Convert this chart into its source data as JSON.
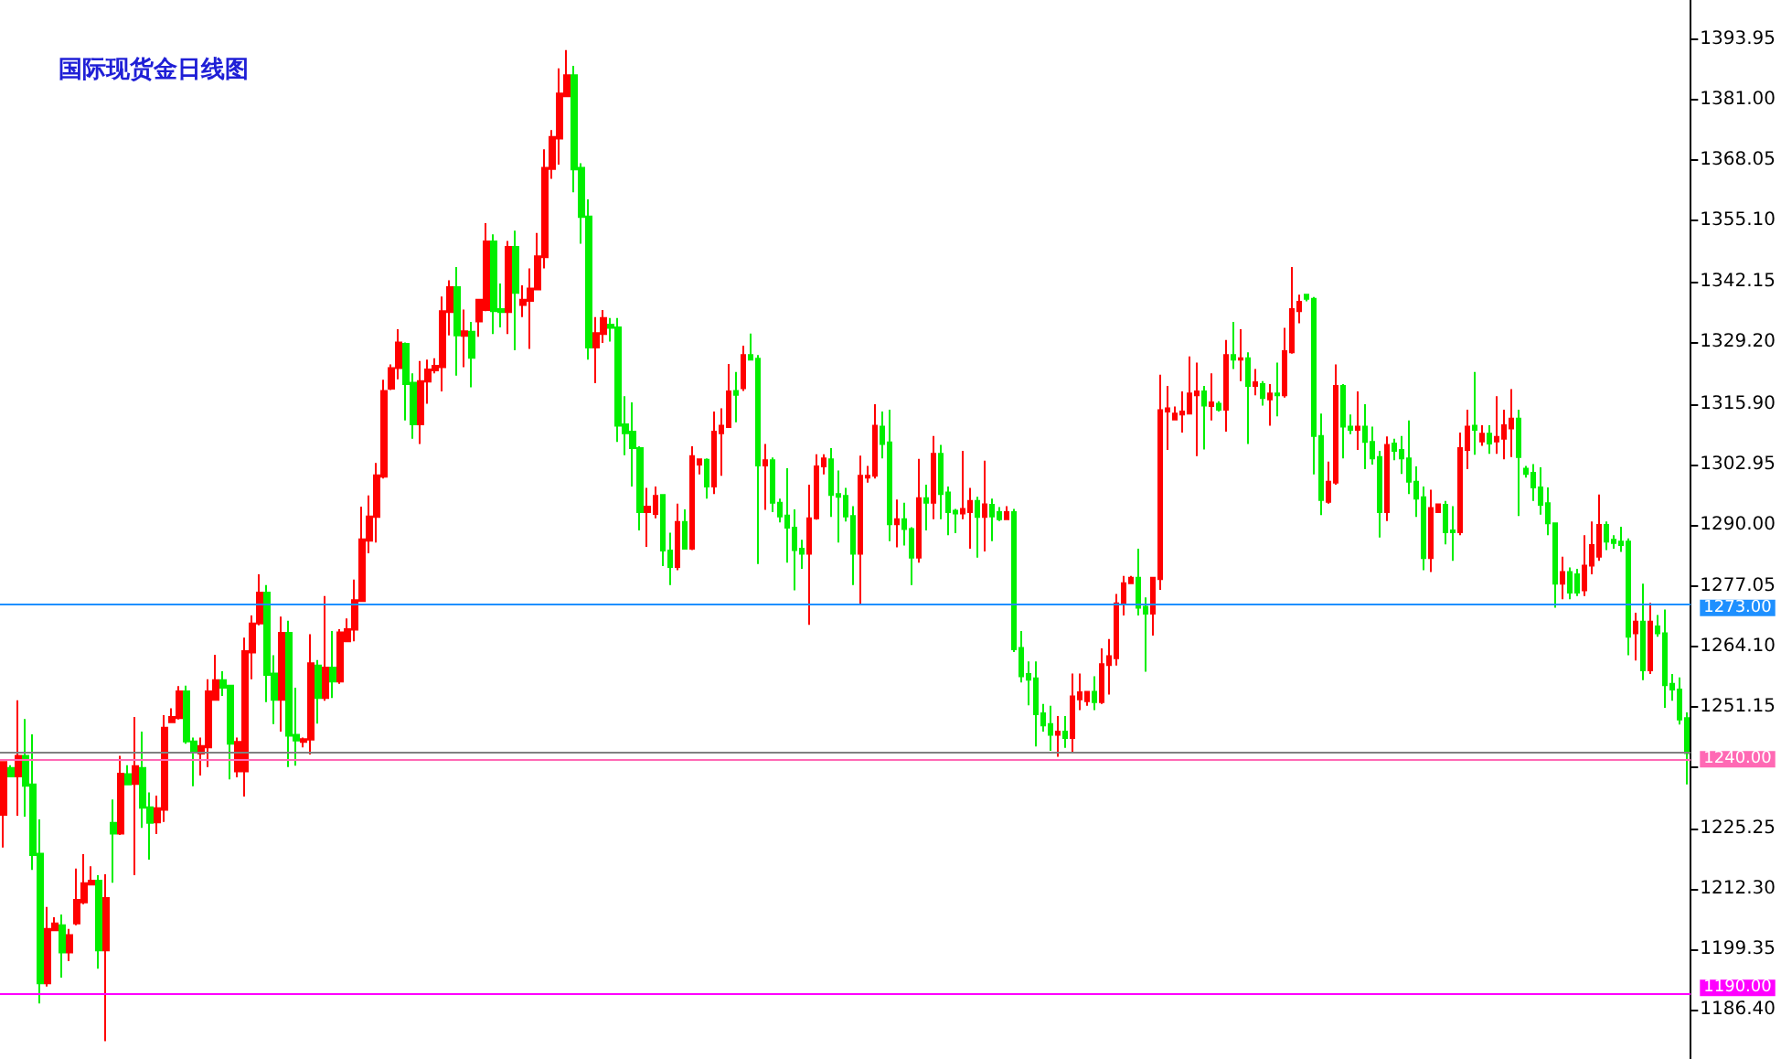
{
  "chart_data": {
    "type": "candlestick",
    "title": "国际现货金日线图",
    "categories": [
      null,
      null,
      null,
      null,
      null,
      null,
      null,
      null,
      null,
      null,
      null,
      null,
      null,
      null,
      null,
      null,
      null,
      null,
      null,
      null,
      null,
      null,
      null,
      null,
      null,
      null,
      null,
      null,
      null,
      null,
      null,
      null,
      null,
      null,
      null,
      null,
      null,
      null,
      null,
      null,
      null,
      null,
      null,
      null,
      null,
      null,
      null,
      null,
      null,
      null,
      null,
      null,
      null,
      null,
      null,
      null,
      null,
      null,
      null,
      null,
      null,
      null,
      null,
      null,
      null,
      null,
      null,
      null,
      null,
      null,
      null,
      null,
      null,
      null,
      null,
      null,
      null,
      null,
      null,
      null,
      null,
      null,
      null,
      null,
      null,
      null,
      null,
      null,
      null,
      null,
      null,
      null,
      null,
      null,
      null,
      null,
      null,
      null,
      null,
      null,
      null,
      null,
      null,
      null,
      null,
      null,
      null,
      null,
      null,
      null,
      null,
      null,
      null,
      null,
      null,
      null,
      null,
      null,
      null,
      null,
      null,
      null,
      null,
      null,
      null,
      null,
      null,
      null,
      null,
      null,
      null,
      null,
      null,
      null,
      null,
      null,
      null,
      null,
      null,
      null,
      null,
      null,
      null,
      null,
      null,
      null,
      null,
      null,
      null,
      null,
      null,
      null,
      null,
      null,
      null,
      null,
      null,
      null,
      null,
      null,
      null,
      null,
      null,
      null,
      null,
      null,
      null,
      null,
      null,
      null,
      null,
      null,
      null,
      null,
      null,
      null,
      null,
      null,
      null,
      null,
      null,
      null,
      null,
      null,
      null,
      null,
      null,
      null,
      null,
      null,
      null,
      null,
      null,
      null,
      null,
      null,
      null,
      null,
      null,
      null,
      null,
      null,
      null,
      null,
      null,
      null,
      null,
      null,
      null,
      null,
      null,
      null,
      null,
      null,
      null,
      null,
      null,
      null,
      null,
      null,
      null,
      null,
      null,
      null,
      null,
      null,
      null,
      null,
      null,
      null,
      null
    ],
    "ohlc": [
      [
        1228.1,
        1239.4,
        1221.1,
        1239.4
      ],
      [
        1238.1,
        1238.7,
        1236.3,
        1236.3
      ],
      [
        1236.3,
        1252.6,
        1227.9,
        1240.7
      ],
      [
        1240.7,
        1248.6,
        1227.7,
        1234.3
      ],
      [
        1234.6,
        1245.3,
        1216.3,
        1219.5
      ],
      [
        1219.8,
        1227.1,
        1187.8,
        1192.1
      ],
      [
        1192.1,
        1208.4,
        1191.4,
        1203.7
      ],
      [
        1203.4,
        1206.2,
        1203.4,
        1204.9
      ],
      [
        1204.5,
        1206.8,
        1193.3,
        1198.7
      ],
      [
        1198.7,
        1203.7,
        1196.8,
        1202.4
      ],
      [
        1204.9,
        1216.6,
        1204.5,
        1209.9
      ],
      [
        1209.4,
        1219.7,
        1209.0,
        1213.5
      ],
      [
        1213.2,
        1217.1,
        1213.2,
        1214.0
      ],
      [
        1214.0,
        1215.2,
        1195.2,
        1199.1
      ],
      [
        1199.1,
        1215.4,
        1179.7,
        1210.3
      ],
      [
        1226.4,
        1231.4,
        1213.6,
        1224.1
      ],
      [
        1224.1,
        1240.7,
        1223.8,
        1236.9
      ],
      [
        1236.8,
        1238.7,
        1234.6,
        1234.6
      ],
      [
        1234.7,
        1249.0,
        1215.2,
        1238.5
      ],
      [
        1238.1,
        1245.9,
        1225.3,
        1229.6
      ],
      [
        1229.7,
        1232.9,
        1218.5,
        1226.4
      ],
      [
        1226.5,
        1232.2,
        1224.0,
        1229.5
      ],
      [
        1229.2,
        1249.4,
        1226.6,
        1246.7
      ],
      [
        1247.9,
        1250.9,
        1247.9,
        1249.0
      ],
      [
        1248.8,
        1255.6,
        1248.5,
        1254.5
      ],
      [
        1254.5,
        1255.7,
        1243.3,
        1243.8
      ],
      [
        1243.8,
        1244.6,
        1234.2,
        1241.6
      ],
      [
        1241.2,
        1244.6,
        1236.5,
        1242.8
      ],
      [
        1242.5,
        1257.1,
        1238.3,
        1254.5
      ],
      [
        1252.7,
        1262.3,
        1252.7,
        1256.9
      ],
      [
        1256.9,
        1258.8,
        1253.5,
        1255.3
      ],
      [
        1255.7,
        1255.7,
        1235.7,
        1243.3
      ],
      [
        1237.4,
        1244.6,
        1236.1,
        1243.7
      ],
      [
        1237.4,
        1266.0,
        1232.0,
        1263.1
      ],
      [
        1262.8,
        1270.7,
        1257.1,
        1269.0
      ],
      [
        1269.0,
        1279.5,
        1268.6,
        1275.6
      ],
      [
        1275.6,
        1277.2,
        1252.2,
        1258.0
      ],
      [
        1258.3,
        1262.2,
        1247.5,
        1252.7
      ],
      [
        1252.7,
        1270.5,
        1245.9,
        1267.0
      ],
      [
        1267.0,
        1269.6,
        1238.3,
        1245.0
      ],
      [
        1245.2,
        1255.3,
        1238.6,
        1244.0
      ],
      [
        1243.7,
        1244.6,
        1242.5,
        1244.3
      ],
      [
        1244.2,
        1266.7,
        1241.0,
        1260.5
      ],
      [
        1260.0,
        1261.2,
        1247.6,
        1253.1
      ],
      [
        1253.1,
        1274.9,
        1252.5,
        1259.6
      ],
      [
        1259.6,
        1267.4,
        1253.1,
        1256.6
      ],
      [
        1256.6,
        1267.8,
        1256.1,
        1267.1
      ],
      [
        1265.2,
        1270.1,
        1265.2,
        1267.8
      ],
      [
        1267.7,
        1278.4,
        1265.2,
        1274.0
      ],
      [
        1273.8,
        1294.0,
        1273.8,
        1287.0
      ],
      [
        1286.7,
        1296.4,
        1284.0,
        1291.9
      ],
      [
        1291.8,
        1303.3,
        1286.3,
        1300.7
      ],
      [
        1300.4,
        1321.1,
        1300.0,
        1318.7
      ],
      [
        1319.2,
        1324.4,
        1318.9,
        1323.6
      ],
      [
        1323.6,
        1331.9,
        1321.2,
        1329.1
      ],
      [
        1328.8,
        1329.1,
        1312.4,
        1320.2
      ],
      [
        1320.5,
        1322.5,
        1308.5,
        1311.6
      ],
      [
        1311.6,
        1325.1,
        1307.4,
        1320.8
      ],
      [
        1320.7,
        1325.4,
        1316.0,
        1323.3
      ],
      [
        1323.1,
        1325.7,
        1322.5,
        1324.1
      ],
      [
        1323.8,
        1338.9,
        1318.6,
        1335.8
      ],
      [
        1335.6,
        1342.4,
        1330.6,
        1340.9
      ],
      [
        1340.9,
        1345.2,
        1322.0,
        1330.6
      ],
      [
        1330.5,
        1336.1,
        1323.8,
        1331.5
      ],
      [
        1331.4,
        1333.5,
        1319.5,
        1325.8
      ],
      [
        1333.6,
        1338.2,
        1330.3,
        1338.2
      ],
      [
        1336.0,
        1354.6,
        1335.8,
        1350.7
      ],
      [
        1350.7,
        1352.2,
        1330.9,
        1335.8
      ],
      [
        1336.2,
        1341.7,
        1332.3,
        1335.6
      ],
      [
        1335.6,
        1350.8,
        1330.9,
        1349.5
      ],
      [
        1349.5,
        1353.0,
        1327.4,
        1339.7
      ],
      [
        1337.1,
        1341.3,
        1334.5,
        1338.2
      ],
      [
        1338.0,
        1344.9,
        1327.7,
        1340.6
      ],
      [
        1340.4,
        1352.5,
        1340.4,
        1347.5
      ],
      [
        1347.3,
        1370.4,
        1344.9,
        1366.4
      ],
      [
        1366.2,
        1374.5,
        1364.1,
        1373.0
      ],
      [
        1372.7,
        1387.7,
        1367.1,
        1382.3
      ],
      [
        1381.7,
        1391.6,
        1381.7,
        1386.2
      ],
      [
        1386.2,
        1388.2,
        1361.2,
        1366.1
      ],
      [
        1366.4,
        1367.4,
        1350.2,
        1355.9
      ],
      [
        1356.0,
        1359.7,
        1325.4,
        1328.0
      ],
      [
        1328.0,
        1334.5,
        1320.4,
        1331.1
      ],
      [
        1330.9,
        1336.0,
        1329.0,
        1334.3
      ],
      [
        1332.9,
        1334.3,
        1329.3,
        1332.2
      ],
      [
        1332.3,
        1334.3,
        1307.8,
        1311.3
      ],
      [
        1311.6,
        1317.6,
        1305.0,
        1309.7
      ],
      [
        1310.0,
        1316.3,
        1298.3,
        1306.5
      ],
      [
        1306.5,
        1306.9,
        1288.9,
        1292.8
      ],
      [
        1292.8,
        1298.0,
        1285.4,
        1294.0
      ],
      [
        1292.4,
        1298.3,
        1291.5,
        1296.3
      ],
      [
        1296.5,
        1296.5,
        1281.3,
        1284.6
      ],
      [
        1284.6,
        1288.4,
        1277.2,
        1281.1
      ],
      [
        1281.1,
        1294.6,
        1280.4,
        1290.7
      ],
      [
        1290.7,
        1293.4,
        1285.0,
        1285.0
      ],
      [
        1285.0,
        1306.9,
        1284.7,
        1304.8
      ],
      [
        1303.0,
        1304.1,
        1300.9,
        1304.1
      ],
      [
        1304.0,
        1304.3,
        1295.7,
        1298.3
      ],
      [
        1298.3,
        1314.3,
        1296.7,
        1310.0
      ],
      [
        1309.7,
        1315.0,
        1300.6,
        1311.3
      ],
      [
        1311.0,
        1324.5,
        1311.0,
        1318.6
      ],
      [
        1318.7,
        1322.8,
        1312.0,
        1317.9
      ],
      [
        1319.3,
        1328.4,
        1318.7,
        1326.4
      ],
      [
        1326.4,
        1331.0,
        1325.4,
        1325.4
      ],
      [
        1325.6,
        1326.4,
        1281.7,
        1302.8
      ],
      [
        1302.8,
        1307.4,
        1293.3,
        1303.9
      ],
      [
        1303.9,
        1304.5,
        1292.8,
        1294.8
      ],
      [
        1294.8,
        1295.7,
        1290.6,
        1291.9
      ],
      [
        1292.1,
        1302.2,
        1282.0,
        1289.5
      ],
      [
        1289.5,
        1293.4,
        1276.1,
        1284.7
      ],
      [
        1285.0,
        1286.9,
        1280.7,
        1283.9
      ],
      [
        1283.9,
        1298.7,
        1268.7,
        1291.5
      ],
      [
        1291.5,
        1305.2,
        1291.2,
        1302.6
      ],
      [
        1302.6,
        1305.2,
        1300.9,
        1304.3
      ],
      [
        1304.1,
        1306.5,
        1291.8,
        1296.5
      ],
      [
        1296.7,
        1301.7,
        1286.3,
        1296.1
      ],
      [
        1296.3,
        1298.0,
        1290.8,
        1291.9
      ],
      [
        1292.0,
        1294.1,
        1277.2,
        1283.9
      ],
      [
        1283.9,
        1304.9,
        1273.0,
        1300.6
      ],
      [
        1300.2,
        1302.7,
        1299.1,
        1300.6
      ],
      [
        1300.6,
        1315.9,
        1300.0,
        1311.3
      ],
      [
        1311.1,
        1314.3,
        1304.3,
        1307.4
      ],
      [
        1307.7,
        1314.7,
        1286.6,
        1290.2
      ],
      [
        1290.2,
        1295.5,
        1285.3,
        1291.3
      ],
      [
        1291.3,
        1294.8,
        1285.7,
        1289.2
      ],
      [
        1289.2,
        1289.6,
        1277.2,
        1283.1
      ],
      [
        1283.1,
        1304.2,
        1282.0,
        1295.8
      ],
      [
        1295.8,
        1298.7,
        1288.9,
        1294.8
      ],
      [
        1294.8,
        1309.1,
        1291.3,
        1305.3
      ],
      [
        1305.3,
        1307.2,
        1291.3,
        1296.7
      ],
      [
        1297.0,
        1298.3,
        1287.9,
        1292.8
      ],
      [
        1293.1,
        1293.5,
        1288.3,
        1292.5
      ],
      [
        1292.5,
        1305.9,
        1291.3,
        1293.5
      ],
      [
        1292.8,
        1298.0,
        1285.0,
        1295.2
      ],
      [
        1295.2,
        1296.1,
        1283.1,
        1291.8
      ],
      [
        1291.8,
        1303.8,
        1284.4,
        1294.5
      ],
      [
        1294.4,
        1295.7,
        1286.6,
        1291.9
      ],
      [
        1292.8,
        1293.9,
        1290.9,
        1291.3
      ],
      [
        1291.3,
        1294.1,
        1291.3,
        1292.8
      ],
      [
        1292.8,
        1293.5,
        1262.9,
        1263.5
      ],
      [
        1263.8,
        1267.4,
        1256.4,
        1257.7
      ],
      [
        1258.2,
        1260.9,
        1251.5,
        1257.0
      ],
      [
        1257.3,
        1260.9,
        1242.7,
        1249.6
      ],
      [
        1249.8,
        1251.8,
        1245.9,
        1247.2
      ],
      [
        1247.5,
        1251.4,
        1241.8,
        1245.2
      ],
      [
        1245.2,
        1249.2,
        1240.5,
        1245.9
      ],
      [
        1245.9,
        1249.2,
        1242.4,
        1244.5
      ],
      [
        1244.5,
        1258.3,
        1241.4,
        1253.4
      ],
      [
        1252.8,
        1258.3,
        1250.5,
        1254.3
      ],
      [
        1252.4,
        1254.4,
        1251.4,
        1254.4
      ],
      [
        1254.4,
        1257.7,
        1250.5,
        1252.2
      ],
      [
        1252.2,
        1263.7,
        1251.8,
        1260.3
      ],
      [
        1260.1,
        1265.7,
        1253.8,
        1262.0
      ],
      [
        1261.6,
        1275.3,
        1260.0,
        1273.3
      ],
      [
        1273.3,
        1279.2,
        1270.7,
        1277.6
      ],
      [
        1277.6,
        1279.2,
        1277.6,
        1278.8
      ],
      [
        1278.8,
        1285.0,
        1270.7,
        1272.4
      ],
      [
        1272.6,
        1274.6,
        1258.7,
        1271.1
      ],
      [
        1271.1,
        1278.8,
        1266.4,
        1278.8
      ],
      [
        1278.5,
        1322.2,
        1276.2,
        1314.6
      ],
      [
        1314.3,
        1319.8,
        1306.1,
        1315.0
      ],
      [
        1312.6,
        1315.4,
        1312.4,
        1313.9
      ],
      [
        1313.7,
        1318.6,
        1309.8,
        1314.3
      ],
      [
        1313.9,
        1326.1,
        1313.7,
        1318.2
      ],
      [
        1317.8,
        1324.8,
        1304.8,
        1318.6
      ],
      [
        1318.6,
        1319.8,
        1306.2,
        1315.6
      ],
      [
        1315.5,
        1322.5,
        1312.4,
        1316.3
      ],
      [
        1316.0,
        1316.5,
        1314.3,
        1314.7
      ],
      [
        1314.7,
        1329.6,
        1310.0,
        1326.4
      ],
      [
        1326.4,
        1333.5,
        1323.4,
        1325.4
      ],
      [
        1325.4,
        1331.9,
        1320.8,
        1325.7
      ],
      [
        1325.7,
        1327.0,
        1307.4,
        1319.8
      ],
      [
        1319.8,
        1323.4,
        1317.8,
        1320.6
      ],
      [
        1320.2,
        1320.8,
        1315.6,
        1317.2
      ],
      [
        1316.9,
        1320.2,
        1311.3,
        1318.2
      ],
      [
        1318.2,
        1324.8,
        1313.3,
        1317.8
      ],
      [
        1317.8,
        1332.2,
        1317.3,
        1327.2
      ],
      [
        1327.0,
        1345.2,
        1326.7,
        1336.2
      ],
      [
        1335.8,
        1339.3,
        1333.2,
        1337.8
      ],
      [
        1339.3,
        1339.3,
        1337.9,
        1338.4
      ],
      [
        1338.4,
        1338.8,
        1300.9,
        1309.1
      ],
      [
        1309.1,
        1313.9,
        1292.2,
        1295.4
      ],
      [
        1295.0,
        1303.6,
        1294.6,
        1299.3
      ],
      [
        1299.1,
        1324.4,
        1298.7,
        1319.8
      ],
      [
        1319.8,
        1320.2,
        1304.3,
        1311.1
      ],
      [
        1311.1,
        1313.7,
        1309.5,
        1310.4
      ],
      [
        1310.4,
        1318.6,
        1306.1,
        1311.1
      ],
      [
        1311.1,
        1315.9,
        1302.0,
        1307.8
      ],
      [
        1307.8,
        1311.1,
        1303.0,
        1304.3
      ],
      [
        1304.6,
        1305.9,
        1287.4,
        1292.8
      ],
      [
        1292.8,
        1309.0,
        1290.9,
        1307.2
      ],
      [
        1307.5,
        1308.5,
        1303.9,
        1305.9
      ],
      [
        1306.1,
        1309.1,
        1301.0,
        1304.3
      ],
      [
        1304.3,
        1312.4,
        1296.7,
        1299.3
      ],
      [
        1299.3,
        1302.6,
        1291.8,
        1295.7
      ],
      [
        1296.0,
        1298.3,
        1280.4,
        1283.0
      ],
      [
        1283.0,
        1297.6,
        1280.0,
        1293.7
      ],
      [
        1292.8,
        1294.5,
        1292.8,
        1294.5
      ],
      [
        1294.4,
        1295.2,
        1285.9,
        1288.5
      ],
      [
        1288.9,
        1294.1,
        1282.4,
        1288.5
      ],
      [
        1288.5,
        1309.8,
        1287.9,
        1306.5
      ],
      [
        1306.1,
        1314.7,
        1302.0,
        1311.1
      ],
      [
        1311.3,
        1322.8,
        1305.1,
        1310.4
      ],
      [
        1307.9,
        1311.4,
        1307.0,
        1309.6
      ],
      [
        1309.6,
        1311.4,
        1305.3,
        1307.5
      ],
      [
        1307.9,
        1317.6,
        1305.3,
        1308.9
      ],
      [
        1308.5,
        1314.7,
        1304.1,
        1311.4
      ],
      [
        1310.7,
        1319.1,
        1304.6,
        1312.8
      ],
      [
        1312.8,
        1314.7,
        1292.0,
        1304.6
      ],
      [
        1302.1,
        1302.7,
        1300.2,
        1301.0
      ],
      [
        1301.2,
        1303.1,
        1295.2,
        1298.1
      ],
      [
        1298.1,
        1302.4,
        1292.3,
        1294.4
      ],
      [
        1294.7,
        1298.1,
        1287.9,
        1290.4
      ],
      [
        1290.4,
        1290.4,
        1272.4,
        1277.5
      ],
      [
        1277.5,
        1283.3,
        1274.2,
        1280.0
      ],
      [
        1280.0,
        1281.0,
        1274.2,
        1275.6
      ],
      [
        1279.5,
        1280.7,
        1274.9,
        1275.6
      ],
      [
        1276.1,
        1287.9,
        1274.9,
        1281.4
      ],
      [
        1281.4,
        1290.8,
        1279.5,
        1285.8
      ],
      [
        1283.3,
        1296.6,
        1282.4,
        1290.1
      ],
      [
        1290.1,
        1290.8,
        1284.7,
        1286.5
      ],
      [
        1286.9,
        1287.9,
        1285.0,
        1286.2
      ],
      [
        1286.5,
        1289.7,
        1284.3,
        1285.8
      ],
      [
        1286.5,
        1287.2,
        1262.2,
        1266.2
      ],
      [
        1266.9,
        1271.3,
        1261.1,
        1269.4
      ],
      [
        1269.4,
        1277.5,
        1256.9,
        1259.0
      ],
      [
        1259.0,
        1273.4,
        1258.2,
        1269.4
      ],
      [
        1268.4,
        1270.8,
        1266.2,
        1266.9
      ],
      [
        1266.9,
        1272.0,
        1251.0,
        1255.8
      ],
      [
        1256.1,
        1258.2,
        1252.5,
        1254.9
      ],
      [
        1254.9,
        1257.5,
        1247.4,
        1248.5
      ],
      [
        1248.8,
        1250.0,
        1234.6,
        1241.3
      ]
    ],
    "colors": [
      "#ff0000",
      "#00ee00",
      "#ff0000",
      "#00ee00",
      "#00ee00",
      "#00ee00",
      "#ff0000",
      "#ff0000",
      "#00ee00",
      "#ff0000",
      "#ff0000",
      "#ff0000",
      "#ff0000",
      "#00ee00",
      "#ff0000",
      "#00ee00",
      "#ff0000",
      "#00ee00",
      "#ff0000",
      "#00ee00",
      "#00ee00",
      "#ff0000",
      "#ff0000",
      "#ff0000",
      "#ff0000",
      "#00ee00",
      "#00ee00",
      "#ff0000",
      "#ff0000",
      "#ff0000",
      "#00ee00",
      "#00ee00",
      "#ff0000",
      "#ff0000",
      "#ff0000",
      "#ff0000",
      "#00ee00",
      "#00ee00",
      "#ff0000",
      "#00ee00",
      "#00ee00",
      "#ff0000",
      "#ff0000",
      "#00ee00",
      "#ff0000",
      "#00ee00",
      "#ff0000",
      "#ff0000",
      "#ff0000",
      "#ff0000",
      "#ff0000",
      "#ff0000",
      "#ff0000",
      "#ff0000",
      "#ff0000",
      "#00ee00",
      "#00ee00",
      "#ff0000",
      "#ff0000",
      "#ff0000",
      "#ff0000",
      "#ff0000",
      "#00ee00",
      "#ff0000",
      "#00ee00",
      "#ff0000",
      "#ff0000",
      "#00ee00",
      "#00ee00",
      "#ff0000",
      "#00ee00",
      "#ff0000",
      "#ff0000",
      "#ff0000",
      "#ff0000",
      "#ff0000",
      "#ff0000",
      "#ff0000",
      "#00ee00",
      "#00ee00",
      "#00ee00",
      "#ff0000",
      "#ff0000",
      "#00ee00",
      "#00ee00",
      "#00ee00",
      "#00ee00",
      "#00ee00",
      "#ff0000",
      "#ff0000",
      "#00ee00",
      "#00ee00",
      "#ff0000",
      "#00ee00",
      "#ff0000",
      "#ff0000",
      "#00ee00",
      "#ff0000",
      "#ff0000",
      "#ff0000",
      "#00ee00",
      "#ff0000",
      "#00ee00",
      "#00ee00",
      "#ff0000",
      "#00ee00",
      "#00ee00",
      "#00ee00",
      "#00ee00",
      "#00ee00",
      "#ff0000",
      "#ff0000",
      "#ff0000",
      "#00ee00",
      "#00ee00",
      "#00ee00",
      "#00ee00",
      "#ff0000",
      "#ff0000",
      "#ff0000",
      "#00ee00",
      "#00ee00",
      "#ff0000",
      "#00ee00",
      "#00ee00",
      "#ff0000",
      "#00ee00",
      "#ff0000",
      "#00ee00",
      "#00ee00",
      "#00ee00",
      "#ff0000",
      "#ff0000",
      "#00ee00",
      "#ff0000",
      "#00ee00",
      "#00ee00",
      "#ff0000",
      "#00ee00",
      "#00ee00",
      "#00ee00",
      "#00ee00",
      "#00ee00",
      "#00ee00",
      "#ff0000",
      "#00ee00",
      "#ff0000",
      "#ff0000",
      "#ff0000",
      "#00ee00",
      "#ff0000",
      "#ff0000",
      "#ff0000",
      "#ff0000",
      "#ff0000",
      "#00ee00",
      "#00ee00",
      "#ff0000",
      "#ff0000",
      "#ff0000",
      "#ff0000",
      "#ff0000",
      "#ff0000",
      "#ff0000",
      "#00ee00",
      "#ff0000",
      "#00ee00",
      "#ff0000",
      "#00ee00",
      "#ff0000",
      "#00ee00",
      "#ff0000",
      "#00ee00",
      "#ff0000",
      "#00ee00",
      "#ff0000",
      "#ff0000",
      "#ff0000",
      "#00ee00",
      "#00ee00",
      "#00ee00",
      "#ff0000",
      "#ff0000",
      "#00ee00",
      "#00ee00",
      "#ff0000",
      "#00ee00",
      "#00ee00",
      "#00ee00",
      "#ff0000",
      "#00ee00",
      "#00ee00",
      "#00ee00",
      "#00ee00",
      "#00ee00",
      "#ff0000",
      "#ff0000",
      "#00ee00",
      "#00ee00",
      "#ff0000",
      "#ff0000",
      "#00ee00",
      "#ff0000",
      "#00ee00",
      "#ff0000",
      "#ff0000",
      "#ff0000",
      "#00ee00",
      "#00ee00",
      "#00ee00",
      "#00ee00",
      "#00ee00",
      "#00ee00",
      "#ff0000",
      "#00ee00",
      "#00ee00",
      "#ff0000",
      "#ff0000",
      "#ff0000",
      "#00ee00",
      "#00ee00",
      "#00ee00",
      "#00ee00",
      "#ff0000",
      "#00ee00",
      "#ff0000",
      "#00ee00",
      "#00ee00",
      "#00ee00",
      "#00ee00",
      "#00ee00"
    ],
    "ylim": [
      1175.9,
      1402.3
    ],
    "yticks": [
      {
        "value": 1186.4,
        "label": "1186.40"
      },
      1199.35,
      {
        "value": 1212.3,
        "label": "1212.30"
      },
      1225.25,
      {
        "value": 1238.2,
        "label": null
      },
      1251.15,
      {
        "value": 1264.1,
        "label": "1264.10"
      },
      1277.05,
      {
        "value": 1290,
        "label": "1290.00"
      },
      1302.95,
      {
        "value": 1315.9,
        "label": "1315.90"
      },
      {
        "value": 1329.2,
        "label": "1329.20"
      },
      1342.15,
      {
        "value": 1355.1,
        "label": "1355.10"
      },
      1368.05,
      {
        "value": 1381,
        "label": "1381.00"
      },
      1393.95
    ],
    "ref_lines": [
      {
        "axis": "y",
        "value": 1273,
        "label": "1273.00",
        "color": "#1e90ff"
      },
      {
        "axis": "y",
        "value": 1241.3,
        "label": null,
        "color": "#808080"
      },
      {
        "axis": "y",
        "value": 1240,
        "label": "1240.00",
        "color": "#ff69b4"
      },
      {
        "axis": "y",
        "value": 1190,
        "label": "1190.00",
        "color": "#ff00ff"
      }
    ],
    "grid": false
  }
}
